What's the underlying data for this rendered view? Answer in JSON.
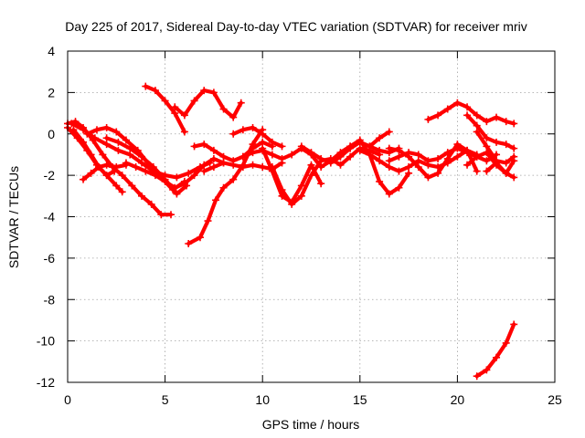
{
  "chart_data": {
    "type": "scatter",
    "title": "Day 225 of 2017, Sidereal Day-to-day VTEC variation (SDTVAR) for receiver mriv",
    "xlabel": "GPS time / hours",
    "ylabel": "SDTVAR / TECUs",
    "xlim": [
      0,
      25
    ],
    "ylim": [
      -12,
      4
    ],
    "xticks": [
      0,
      5,
      10,
      15,
      20,
      25
    ],
    "yticks": [
      -12,
      -10,
      -8,
      -6,
      -4,
      -2,
      0,
      2,
      4
    ],
    "xtick_labels": [
      "0",
      "5",
      "10",
      "15",
      "20",
      "25"
    ],
    "ytick_labels": [
      "-12",
      "-10",
      "-8",
      "-6",
      "-4",
      "-2",
      "0",
      "2",
      "4"
    ],
    "grid": true,
    "legend": "none",
    "marker": "+",
    "color": "#ff0000",
    "series": [
      {
        "name": "trace-1",
        "x": [
          0.0,
          0.5,
          1.0,
          1.5,
          2.0,
          2.5,
          2.8
        ],
        "y": [
          0.3,
          -0.2,
          -0.8,
          -1.5,
          -2.0,
          -2.5,
          -2.8
        ]
      },
      {
        "name": "trace-2",
        "x": [
          0.0,
          0.4,
          0.8,
          1.3,
          1.8,
          2.3,
          2.8,
          3.3,
          3.8,
          4.3,
          4.8,
          5.3
        ],
        "y": [
          0.5,
          0.6,
          0.3,
          -0.3,
          -1.0,
          -1.6,
          -2.0,
          -2.5,
          -3.0,
          -3.4,
          -3.9,
          -3.9
        ]
      },
      {
        "name": "trace-3",
        "x": [
          0.3,
          0.8,
          1.2,
          1.6,
          2.0,
          2.4
        ],
        "y": [
          0.2,
          -0.4,
          -1.0,
          -1.6,
          -2.0,
          -1.8
        ]
      },
      {
        "name": "trace-4",
        "x": [
          0.8,
          1.2,
          1.6,
          2.0,
          2.5,
          3.0
        ],
        "y": [
          -2.2,
          -1.9,
          -1.6,
          -1.5,
          -1.6,
          -1.5
        ]
      },
      {
        "name": "trace-5",
        "x": [
          0.2,
          0.8,
          1.4,
          2.0,
          2.6,
          3.2,
          3.8,
          4.4,
          5.0,
          5.6,
          6.2,
          6.8,
          7.3
        ],
        "y": [
          0.5,
          0.2,
          -0.2,
          -0.5,
          -0.8,
          -1.0,
          -1.4,
          -1.8,
          -2.0,
          -2.1,
          -1.9,
          -1.6,
          -1.4
        ]
      },
      {
        "name": "trace-6",
        "x": [
          1.0,
          1.5,
          2.0,
          2.5,
          3.0,
          3.6,
          4.2,
          4.8,
          5.4,
          6.0
        ],
        "y": [
          0.0,
          0.2,
          0.3,
          0.1,
          -0.3,
          -0.8,
          -1.5,
          -2.1,
          -2.7,
          -2.3
        ]
      },
      {
        "name": "trace-7",
        "x": [
          2.0,
          2.6,
          3.2,
          3.8,
          4.4,
          5.0,
          5.6,
          6.1
        ],
        "y": [
          -0.2,
          -0.4,
          -0.7,
          -1.1,
          -1.6,
          -2.2,
          -2.9,
          -2.5
        ]
      },
      {
        "name": "trace-8",
        "x": [
          3.0,
          3.5,
          4.0,
          4.5,
          5.0,
          5.5,
          6.0,
          6.5,
          7.0,
          7.5,
          8.0
        ],
        "y": [
          -1.4,
          -1.6,
          -1.8,
          -2.0,
          -2.3,
          -2.6,
          -2.4,
          -2.0,
          -1.5,
          -1.2,
          -1.4
        ]
      },
      {
        "name": "trace-9",
        "x": [
          4.0,
          4.5,
          5.0,
          5.5,
          6.0
        ],
        "y": [
          2.3,
          2.1,
          1.6,
          1.0,
          0.1
        ]
      },
      {
        "name": "trace-10",
        "x": [
          5.5,
          6.0,
          6.5,
          7.0,
          7.5,
          8.0,
          8.5,
          8.9
        ],
        "y": [
          1.3,
          0.9,
          1.6,
          2.1,
          2.0,
          1.2,
          0.8,
          1.5
        ]
      },
      {
        "name": "trace-11",
        "x": [
          6.2,
          6.8,
          7.2,
          7.6,
          8.0,
          8.5,
          9.0,
          9.5,
          10.0
        ],
        "y": [
          -5.3,
          -5.0,
          -4.2,
          -3.2,
          -2.6,
          -2.2,
          -1.5,
          -0.5,
          0.2
        ]
      },
      {
        "name": "trace-12",
        "x": [
          6.5,
          7.0,
          7.5,
          8.0,
          8.5,
          9.0,
          9.5,
          10.0,
          10.5
        ],
        "y": [
          -0.6,
          -0.5,
          -0.8,
          -1.1,
          -1.3,
          -1.1,
          -0.7,
          -0.4,
          -0.6
        ]
      },
      {
        "name": "trace-13",
        "x": [
          7.0,
          7.5,
          8.0,
          8.5,
          9.0,
          9.5,
          10.0,
          10.5,
          11.0
        ],
        "y": [
          -1.8,
          -1.6,
          -1.4,
          -1.5,
          -1.6,
          -1.5,
          -1.6,
          -1.7,
          -1.4
        ]
      },
      {
        "name": "trace-14",
        "x": [
          8.5,
          9.0,
          9.5,
          10.0,
          10.5,
          11.0
        ],
        "y": [
          0.0,
          0.2,
          0.3,
          0.0,
          -0.4,
          -0.6
        ]
      },
      {
        "name": "trace-15",
        "x": [
          9.0,
          9.5,
          10.0,
          10.5,
          11.0,
          11.5,
          12.0,
          12.5,
          13.0,
          13.5,
          14.0,
          14.5,
          15.0,
          15.5,
          16.0,
          16.5
        ],
        "y": [
          -1.1,
          -0.9,
          -0.8,
          -1.0,
          -1.2,
          -1.0,
          -0.7,
          -1.0,
          -1.6,
          -1.3,
          -0.9,
          -0.6,
          -0.4,
          -0.6,
          -0.2,
          0.1
        ]
      },
      {
        "name": "trace-16",
        "x": [
          10.0,
          10.5,
          11.0,
          11.5,
          12.0,
          12.5,
          13.0
        ],
        "y": [
          -0.7,
          -1.8,
          -3.0,
          -3.3,
          -2.5,
          -1.5,
          -2.4
        ]
      },
      {
        "name": "trace-17",
        "x": [
          10.5,
          11.0,
          11.5,
          12.0,
          12.5,
          13.0,
          13.5,
          14.0,
          14.5,
          15.0,
          15.5,
          16.0
        ],
        "y": [
          -1.6,
          -2.7,
          -3.4,
          -3.0,
          -2.0,
          -1.3,
          -1.2,
          -1.5,
          -1.1,
          -0.7,
          -0.8,
          -1.0
        ]
      },
      {
        "name": "trace-18",
        "x": [
          12.0,
          12.5,
          13.0,
          13.5,
          14.0,
          14.5,
          15.0,
          15.5,
          16.0,
          16.5,
          17.0
        ],
        "y": [
          -0.6,
          -0.9,
          -1.2,
          -1.4,
          -1.1,
          -0.7,
          -0.4,
          -0.6,
          -0.8,
          -0.9,
          -0.7
        ]
      },
      {
        "name": "trace-19",
        "x": [
          14.5,
          15.0,
          15.5,
          16.0,
          16.5,
          17.0,
          17.5
        ],
        "y": [
          -0.6,
          -0.3,
          -1.0,
          -2.3,
          -2.9,
          -2.6,
          -1.9
        ]
      },
      {
        "name": "trace-20",
        "x": [
          15.0,
          15.5,
          16.0,
          16.5,
          17.0,
          17.5,
          18.0,
          18.5,
          19.0,
          19.5,
          20.0,
          20.5,
          21.0
        ],
        "y": [
          -0.8,
          -1.0,
          -1.3,
          -1.6,
          -1.8,
          -1.6,
          -1.3,
          -1.5,
          -1.6,
          -1.4,
          -1.1,
          -0.8,
          -1.0
        ]
      },
      {
        "name": "trace-21",
        "x": [
          16.5,
          17.0,
          17.5,
          18.0,
          18.5,
          19.0,
          19.5,
          20.0,
          20.5,
          21.0,
          21.5,
          22.0
        ],
        "y": [
          -1.3,
          -1.1,
          -0.9,
          -1.0,
          -1.3,
          -1.2,
          -0.9,
          -0.7,
          -0.9,
          -1.1,
          -1.3,
          -1.0
        ]
      },
      {
        "name": "trace-22",
        "x": [
          16.5,
          17.0,
          17.5,
          18.0,
          18.5,
          19.0,
          19.5,
          20.0,
          20.5,
          21.0
        ],
        "y": [
          -0.7,
          -0.8,
          -1.1,
          -1.6,
          -2.1,
          -1.9,
          -1.2,
          -0.5,
          -0.8,
          -1.8
        ]
      },
      {
        "name": "trace-23",
        "x": [
          18.5,
          19.0,
          19.5,
          20.0,
          20.5,
          21.0,
          21.5,
          22.0,
          22.5,
          22.9
        ],
        "y": [
          0.7,
          0.9,
          1.2,
          1.5,
          1.3,
          0.9,
          0.6,
          0.8,
          0.6,
          0.5
        ]
      },
      {
        "name": "trace-24",
        "x": [
          20.5,
          21.0,
          21.5,
          22.0,
          22.5,
          22.9
        ],
        "y": [
          0.9,
          0.4,
          -0.2,
          -0.4,
          -0.5,
          -0.7
        ]
      },
      {
        "name": "trace-25",
        "x": [
          21.0,
          21.5,
          22.0,
          22.5,
          22.9
        ],
        "y": [
          0.1,
          -0.6,
          -1.3,
          -1.4,
          -1.1
        ]
      },
      {
        "name": "trace-26",
        "x": [
          20.5,
          21.0,
          21.5,
          22.0,
          22.5,
          22.9
        ],
        "y": [
          -1.5,
          -1.1,
          -0.9,
          -1.5,
          -1.9,
          -1.3
        ]
      },
      {
        "name": "trace-27",
        "x": [
          21.5,
          22.0,
          22.5,
          22.9
        ],
        "y": [
          -1.8,
          -1.4,
          -1.9,
          -2.1
        ]
      },
      {
        "name": "trace-28",
        "x": [
          21.0,
          21.5,
          22.0,
          22.5,
          22.9
        ],
        "y": [
          -11.7,
          -11.4,
          -10.8,
          -10.1,
          -9.2
        ]
      }
    ]
  }
}
